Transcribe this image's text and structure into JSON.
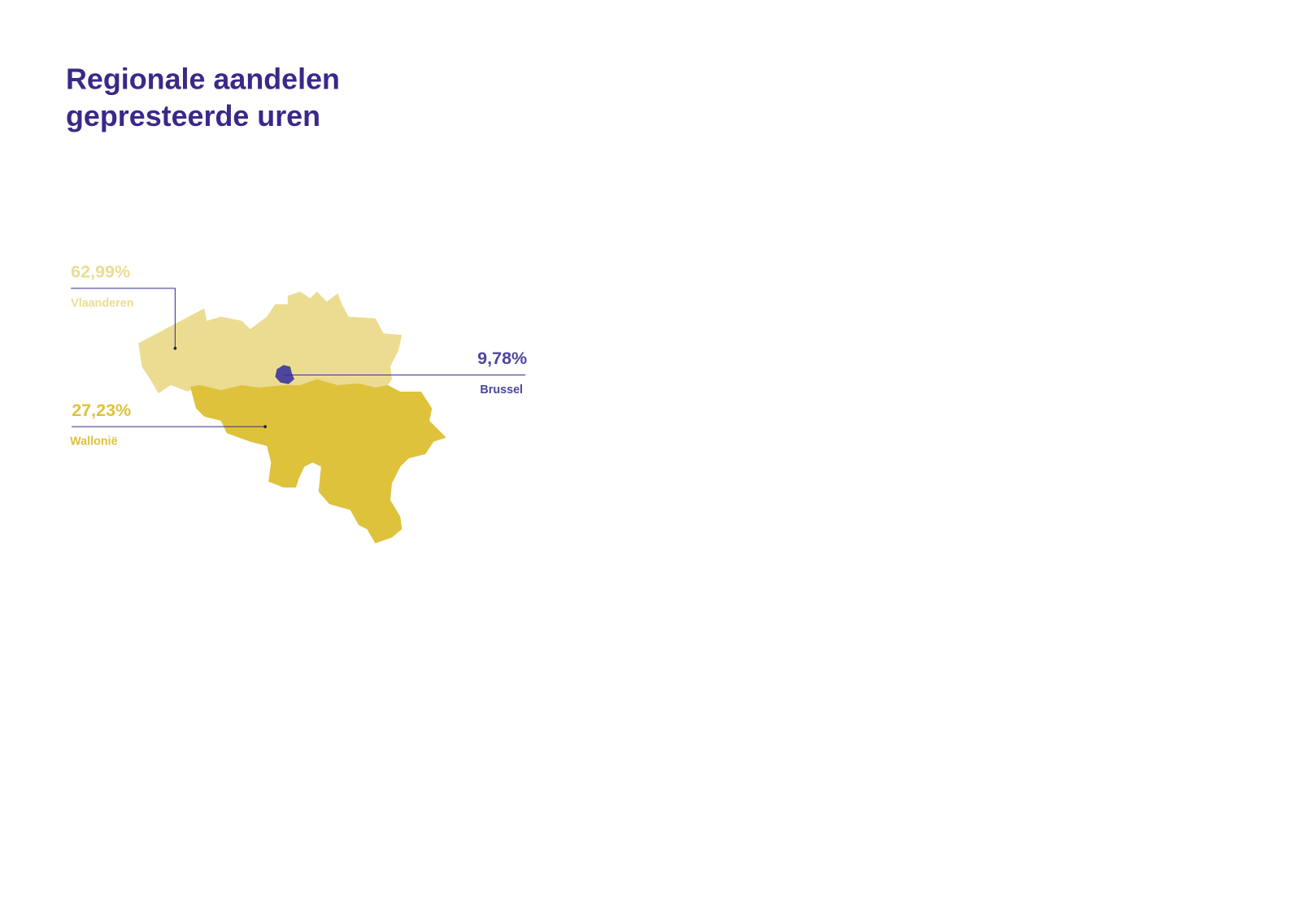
{
  "title": {
    "lines": [
      "Regionale aandelen",
      "gepresteerde uren"
    ],
    "color": "#3b2889"
  },
  "regions": [
    {
      "name": "Vlaanderen",
      "value_label": "62,99%",
      "color": "#ecdc92"
    },
    {
      "name": "Wallonië",
      "value_label": "27,23%",
      "color": "#dfc23c"
    },
    {
      "name": "Brussel",
      "value_label": "9,78%",
      "color": "#4b479d"
    }
  ]
}
